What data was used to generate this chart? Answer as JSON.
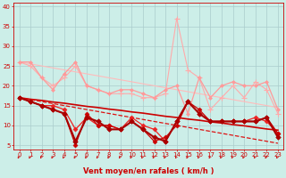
{
  "background_color": "#cceee8",
  "grid_color": "#aacccc",
  "xlabel": "Vent moyen/en rafales ( km/h )",
  "xlim": [
    -0.5,
    23.5
  ],
  "ylim": [
    4,
    41
  ],
  "yticks": [
    5,
    10,
    15,
    20,
    25,
    30,
    35,
    40
  ],
  "xticks": [
    0,
    1,
    2,
    3,
    4,
    5,
    6,
    7,
    8,
    9,
    10,
    11,
    12,
    13,
    14,
    15,
    16,
    17,
    18,
    19,
    20,
    21,
    22,
    23
  ],
  "x": [
    0,
    1,
    2,
    3,
    4,
    5,
    6,
    7,
    8,
    9,
    10,
    11,
    12,
    13,
    14,
    15,
    16,
    17,
    18,
    19,
    20,
    21,
    22,
    23
  ],
  "lines": [
    {
      "y": [
        26,
        25,
        22,
        20,
        22,
        25,
        20,
        19,
        18,
        18,
        18,
        17,
        17,
        18,
        37,
        24,
        22,
        14,
        17,
        20,
        17,
        21,
        19,
        13
      ],
      "color": "#ffaaaa",
      "lw": 0.8,
      "marker": "+",
      "ms": 4,
      "mew": 0.8,
      "linestyle": "-",
      "zorder": 2
    },
    {
      "y": [
        26,
        26,
        22,
        19,
        23,
        26,
        20,
        19,
        18,
        19,
        19,
        18,
        17,
        19,
        20,
        13,
        22,
        17,
        20,
        21,
        20,
        20,
        21,
        14
      ],
      "color": "#ff9999",
      "lw": 0.9,
      "marker": "D",
      "ms": 2.0,
      "mew": 0.5,
      "linestyle": "-",
      "zorder": 2
    },
    {
      "y": [
        26,
        25.5,
        25,
        24.5,
        24,
        23.5,
        23,
        22.5,
        22,
        21.5,
        21,
        20.5,
        20,
        19.5,
        19,
        18.5,
        18,
        17.5,
        17,
        16.5,
        16,
        15.5,
        15,
        14.5
      ],
      "color": "#ffbbbb",
      "lw": 0.8,
      "marker": null,
      "ms": 0,
      "mew": 0,
      "linestyle": "-",
      "zorder": 1
    },
    {
      "y": [
        17,
        16.6,
        16.3,
        15.9,
        15.6,
        15.2,
        14.8,
        14.5,
        14.1,
        13.8,
        13.4,
        13.1,
        12.7,
        12.3,
        12.0,
        11.6,
        11.3,
        10.9,
        10.6,
        10.2,
        9.9,
        9.5,
        9.1,
        8.8
      ],
      "color": "#cc0000",
      "lw": 1.2,
      "marker": null,
      "ms": 0,
      "mew": 0,
      "linestyle": "-",
      "zorder": 3
    },
    {
      "y": [
        17,
        16,
        15,
        15,
        14,
        9,
        12,
        10,
        10,
        9,
        12,
        10,
        9,
        6,
        11,
        16,
        13,
        11,
        11,
        11,
        11,
        12,
        11,
        8
      ],
      "color": "#ee2222",
      "lw": 0.9,
      "marker": "D",
      "ms": 2.5,
      "mew": 0.5,
      "linestyle": "-",
      "zorder": 4
    },
    {
      "y": [
        17,
        16,
        15,
        14,
        13,
        5,
        13,
        10,
        10,
        9,
        11,
        9,
        6,
        7,
        10,
        16,
        14,
        11,
        11,
        11,
        11,
        11,
        12,
        8
      ],
      "color": "#cc0000",
      "lw": 0.9,
      "marker": "D",
      "ms": 2.5,
      "mew": 0.5,
      "linestyle": "-",
      "zorder": 4
    },
    {
      "y": [
        17,
        16.5,
        16,
        15.5,
        15,
        14.5,
        14,
        13.5,
        13,
        12.5,
        12,
        11.5,
        11,
        10.5,
        10,
        9.5,
        9,
        8.5,
        8,
        7.5,
        7,
        6.5,
        6,
        5.5
      ],
      "color": "#dd1111",
      "lw": 0.9,
      "marker": null,
      "ms": 0,
      "mew": 0,
      "linestyle": "--",
      "zorder": 3
    },
    {
      "y": [
        17,
        16,
        15,
        14,
        13,
        6,
        12,
        11,
        9,
        9,
        11,
        9,
        7,
        6,
        11,
        16,
        13,
        11,
        11,
        11,
        11,
        11,
        12,
        7
      ],
      "color": "#aa0000",
      "lw": 1.5,
      "marker": "D",
      "ms": 2.8,
      "mew": 0.5,
      "linestyle": "-",
      "zorder": 5
    }
  ],
  "tick_fontsize": 5,
  "axis_fontsize": 6,
  "arrow_color": "#cc0000"
}
